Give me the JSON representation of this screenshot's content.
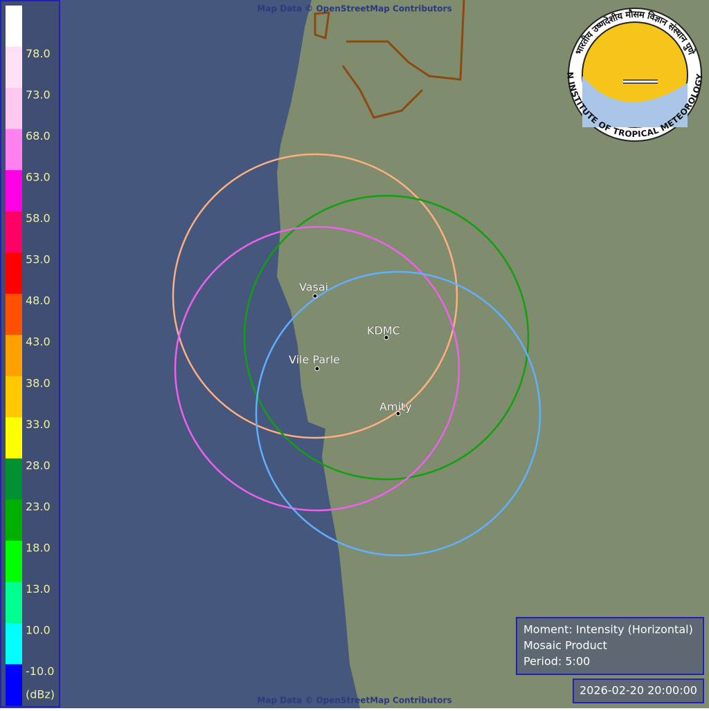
{
  "attribution": {
    "top": "Map Data © OpenStreetMap Contributors",
    "bottom": "Map Data © OpenStreetMap Contributors"
  },
  "legend": {
    "unit": "(dBz)",
    "colors": [
      "#ffffff",
      "#ffe0f4",
      "#ffc8ee",
      "#ff80f0",
      "#ff00e6",
      "#ff0066",
      "#ff0000",
      "#ff5000",
      "#ffa000",
      "#ffc800",
      "#ffff00",
      "#009030",
      "#00b000",
      "#00ff00",
      "#00ff90",
      "#00ffff",
      "#0000ff"
    ],
    "labels": [
      "78.0",
      "73.0",
      "68.0",
      "63.0",
      "58.0",
      "53.0",
      "48.0",
      "43.0",
      "38.0",
      "33.0",
      "28.0",
      "23.0",
      "18.0",
      "13.0",
      "10.0",
      "-10.0"
    ]
  },
  "stations": [
    {
      "name": "Vasai",
      "color": "#ffb080"
    },
    {
      "name": "KDMC",
      "color": "#10a010"
    },
    {
      "name": "Vile Parle",
      "color": "#f060f0"
    },
    {
      "name": "Amity",
      "color": "#60b0ff"
    }
  ],
  "logo": {
    "hindi": "भारतीय उष्णदेशीय मौसम विज्ञान संस्थान पुणे",
    "english": "INDIAN INSTITUTE OF TROPICAL METEOROLOGY PUNE"
  },
  "info": {
    "moment": "Moment: Intensity (Horizontal)",
    "product": "Mosaic Product",
    "period": "Period: 5:00"
  },
  "timestamp": "2026-02-20 20:00:00"
}
